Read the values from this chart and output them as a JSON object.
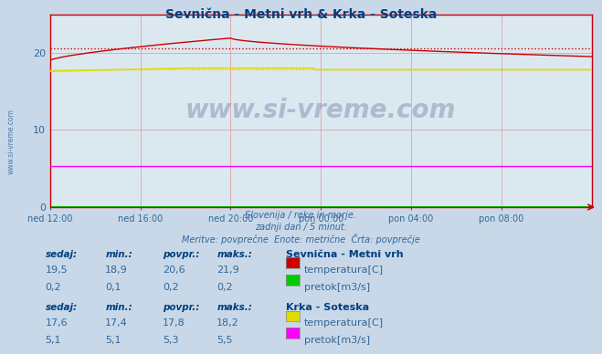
{
  "title": "Sevnična - Metni vrh & Krka - Soteska",
  "title_color": "#003f7f",
  "bg_color": "#c8d8e8",
  "plot_bg_color": "#dce8f0",
  "grid_color": "#e08080",
  "axis_color": "#cc0000",
  "xlabel_color": "#336699",
  "text_color": "#336699",
  "bold_color": "#003f7f",
  "figsize": [
    6.59,
    3.88
  ],
  "dpi": 100,
  "xlim": [
    0,
    288
  ],
  "ylim": [
    0,
    25
  ],
  "yticks": [
    0,
    10,
    20
  ],
  "xtick_labels": [
    "ned 12:00",
    "ned 16:00",
    "ned 20:00",
    "pon 00:00",
    "pon 04:00",
    "pon 08:00"
  ],
  "xtick_positions": [
    0,
    48,
    96,
    144,
    192,
    240
  ],
  "subtitle_line1": "Slovenija / reke in morje.",
  "subtitle_line2": "zadnji dan / 5 minut.",
  "subtitle_line3": "Meritve: povprečne  Enote: metrične  Črta: povprečje",
  "watermark": "www.si-vreme.com",
  "table_data": {
    "headers": [
      "sedaj:",
      "min.:",
      "povpr.:",
      "maks.:"
    ],
    "station1_name": "Sevnična - Metni vrh",
    "station1_rows": [
      {
        "values": [
          "19,5",
          "18,9",
          "20,6",
          "21,9"
        ],
        "color": "#cc0000",
        "label": "temperatura[C]"
      },
      {
        "values": [
          "0,2",
          "0,1",
          "0,2",
          "0,2"
        ],
        "color": "#00cc00",
        "label": "pretok[m3/s]"
      }
    ],
    "station2_name": "Krka - Soteska",
    "station2_rows": [
      {
        "values": [
          "17,6",
          "17,4",
          "17,8",
          "18,2"
        ],
        "color": "#dddd00",
        "label": "temperatura[C]"
      },
      {
        "values": [
          "5,1",
          "5,1",
          "5,3",
          "5,5"
        ],
        "color": "#ff00ff",
        "label": "pretok[m3/s]"
      }
    ]
  },
  "sevnicna_temp_color": "#cc0000",
  "sevnicna_pretok_color": "#00cc00",
  "krka_temp_color": "#dddd00",
  "krka_pretok_color": "#ff00ff",
  "sevnicna_avg": 20.6,
  "krka_avg": 17.8,
  "krka_pretok_avg": 5.3
}
